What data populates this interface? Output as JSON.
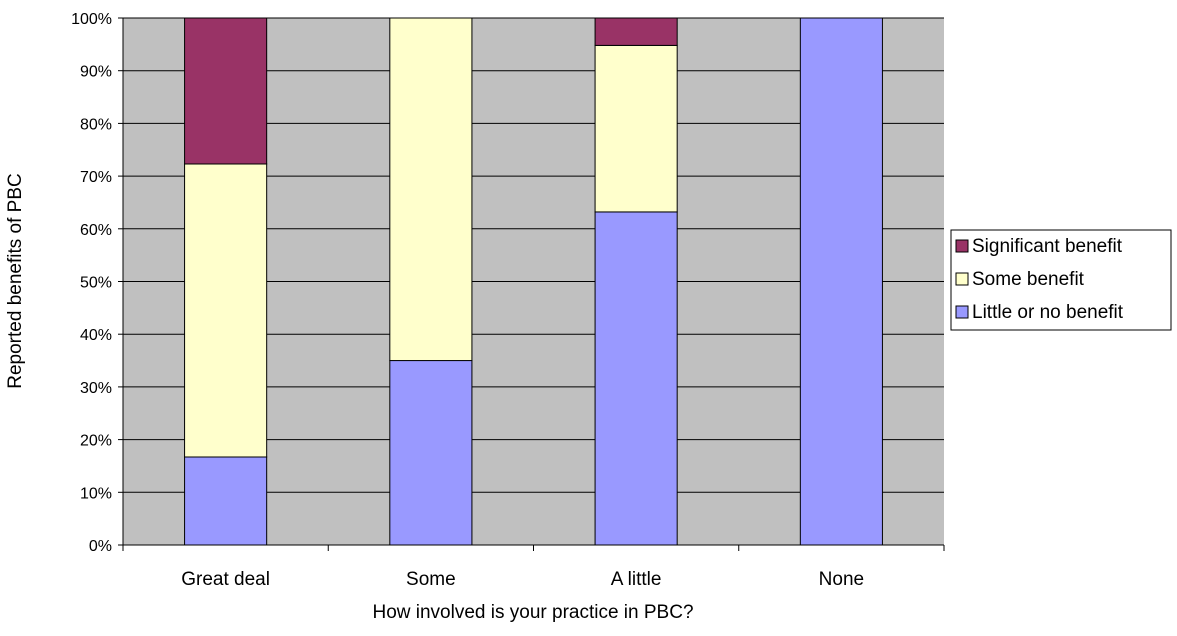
{
  "chart_data": {
    "type": "bar",
    "stacked": true,
    "percent": true,
    "title": "",
    "xlabel": "How involved is your practice in PBC?",
    "ylabel": "Reported benefits of PBC",
    "ylim": [
      0,
      100
    ],
    "yticks": [
      "0%",
      "10%",
      "20%",
      "30%",
      "40%",
      "50%",
      "60%",
      "70%",
      "80%",
      "90%",
      "100%"
    ],
    "categories": [
      "Great deal",
      "Some",
      "A little",
      "None"
    ],
    "series": [
      {
        "name": "Little or no benefit",
        "values": [
          16.7,
          35.0,
          63.2,
          100.0
        ],
        "color": "#9999ff"
      },
      {
        "name": "Some benefit",
        "values": [
          55.6,
          65.0,
          31.6,
          0.0
        ],
        "color": "#ffffcc"
      },
      {
        "name": "Significant benefit",
        "values": [
          27.7,
          0.0,
          5.2,
          0.0
        ],
        "color": "#993366"
      }
    ],
    "legend_order": [
      "Significant benefit",
      "Some benefit",
      "Little or no benefit"
    ],
    "legend_position": "right",
    "plot_background": "#c0c0c0",
    "grid": true
  }
}
